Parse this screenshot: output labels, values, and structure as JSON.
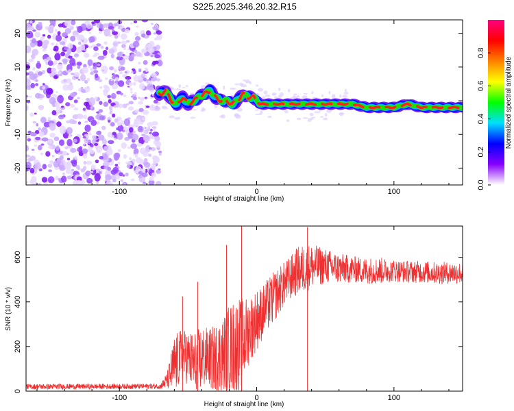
{
  "title": "S225.2025.346.20.32.R15",
  "chart_data": [
    {
      "type": "heatmap",
      "name": "spectrogram",
      "xlabel": "Height of straight line (km)",
      "ylabel": "Frequency (Hz)",
      "xlim": [
        -168,
        150
      ],
      "ylim": [
        -25,
        24
      ],
      "xticks": [
        -100,
        0,
        100
      ],
      "yticks": [
        -20,
        -10,
        0,
        10,
        20
      ],
      "noise_region_x": [
        -168,
        -70
      ],
      "ridge": {
        "x": [
          -70,
          -66,
          -62,
          -58,
          -54,
          -50,
          -46,
          -42,
          -38,
          -34,
          -30,
          -26,
          -22,
          -18,
          -14,
          -10,
          -6,
          -2,
          2,
          10,
          20,
          30,
          40,
          50,
          60,
          70,
          80,
          90,
          100,
          110,
          120,
          130,
          140,
          150
        ],
        "freq": [
          2,
          3,
          0,
          -1,
          1,
          -1,
          0,
          1,
          2,
          3,
          1,
          0,
          0,
          -1,
          0,
          2,
          1,
          1,
          -1,
          -1,
          -1,
          -1,
          -1,
          -1,
          -1,
          -1,
          -2,
          -2,
          -2,
          -1,
          -2,
          -2,
          -2,
          -2
        ]
      },
      "colorbar": {
        "label": "Normalized spectral amplitude",
        "ticks": [
          0.0,
          0.2,
          0.4,
          0.6,
          0.8
        ],
        "colors": [
          "#ffffff",
          "#8800ff",
          "#0000ff",
          "#00e0ff",
          "#00ff00",
          "#ffff00",
          "#ff8000",
          "#ff0000",
          "#ff0080"
        ]
      }
    },
    {
      "type": "line",
      "name": "snr",
      "xlabel": "Height of straight line (km)",
      "ylabel": "SNR (10 * v/v)",
      "xlim": [
        -168,
        150
      ],
      "ylim": [
        0,
        740
      ],
      "xticks": [
        -100,
        0,
        100
      ],
      "yticks": [
        0,
        200,
        400,
        600
      ],
      "color": "#f03030",
      "envelope": {
        "x": [
          -168,
          -70,
          -65,
          -60,
          -55,
          -50,
          -45,
          -40,
          -35,
          -30,
          -25,
          -20,
          -15,
          -10,
          -5,
          0,
          5,
          10,
          15,
          20,
          25,
          30,
          35,
          40,
          50,
          60,
          70,
          80,
          90,
          100,
          110,
          120,
          130,
          140,
          150
        ],
        "mean": [
          20,
          22,
          50,
          110,
          160,
          150,
          120,
          150,
          150,
          140,
          160,
          190,
          200,
          220,
          280,
          320,
          360,
          400,
          440,
          480,
          510,
          540,
          550,
          560,
          560,
          550,
          545,
          540,
          540,
          540,
          535,
          535,
          530,
          530,
          530
        ],
        "amp": [
          12,
          12,
          40,
          140,
          120,
          120,
          150,
          150,
          130,
          160,
          180,
          200,
          220,
          200,
          150,
          140,
          120,
          120,
          110,
          100,
          100,
          110,
          110,
          100,
          80,
          70,
          60,
          60,
          60,
          50,
          50,
          50,
          50,
          50,
          50
        ]
      },
      "spikes": [
        {
          "x": -54,
          "y": 425
        },
        {
          "x": -43,
          "y": 490
        },
        {
          "x": -22,
          "y": 655
        },
        {
          "x": -11,
          "y": 740
        },
        {
          "x": 37,
          "y": 735
        }
      ]
    }
  ]
}
